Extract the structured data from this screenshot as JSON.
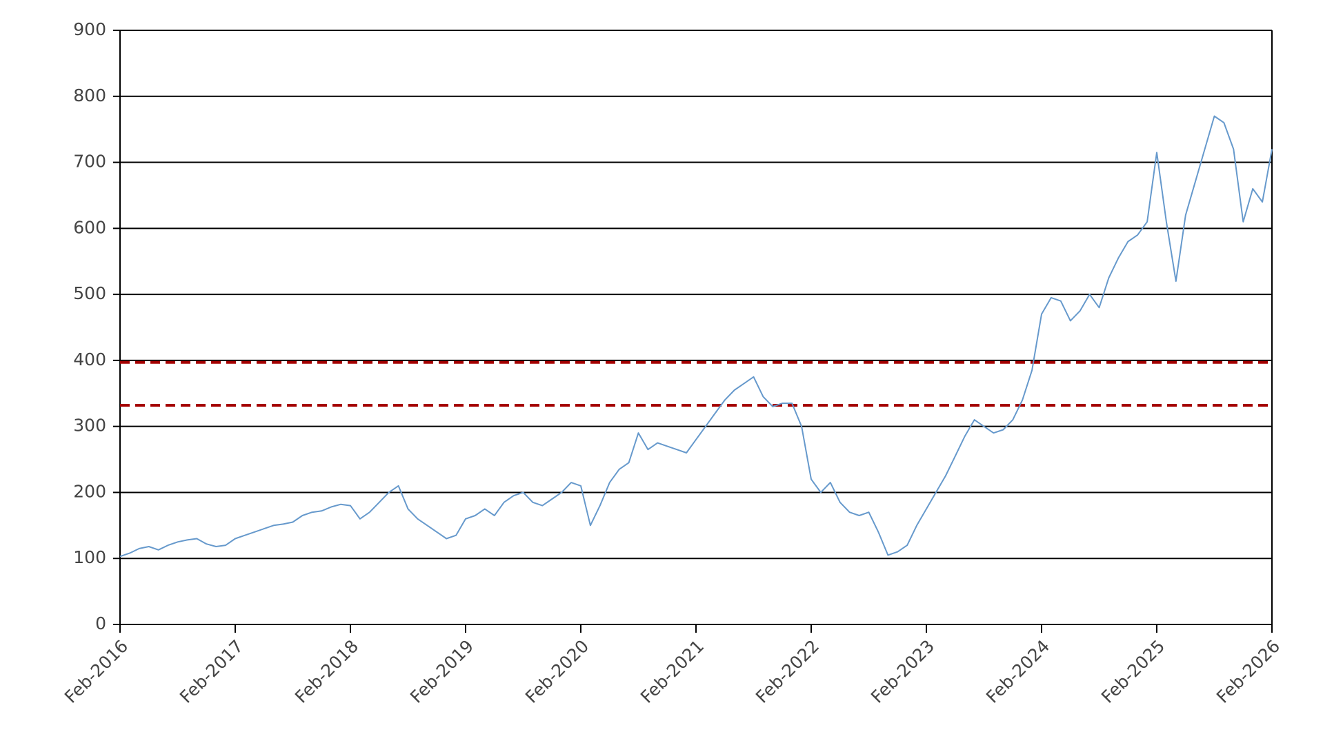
{
  "chart_data": {
    "type": "line",
    "x": [
      "2016-02",
      "2016-03",
      "2016-04",
      "2016-05",
      "2016-06",
      "2016-07",
      "2016-08",
      "2016-09",
      "2016-10",
      "2016-11",
      "2016-12",
      "2017-01",
      "2017-02",
      "2017-03",
      "2017-04",
      "2017-05",
      "2017-06",
      "2017-07",
      "2017-08",
      "2017-09",
      "2017-10",
      "2017-11",
      "2017-12",
      "2018-01",
      "2018-02",
      "2018-03",
      "2018-04",
      "2018-05",
      "2018-06",
      "2018-07",
      "2018-08",
      "2018-09",
      "2018-10",
      "2018-11",
      "2018-12",
      "2019-01",
      "2019-02",
      "2019-03",
      "2019-04",
      "2019-05",
      "2019-06",
      "2019-07",
      "2019-08",
      "2019-09",
      "2019-10",
      "2019-11",
      "2019-12",
      "2020-01",
      "2020-02",
      "2020-03",
      "2020-04",
      "2020-05",
      "2020-06",
      "2020-07",
      "2020-08",
      "2020-09",
      "2020-10",
      "2020-11",
      "2020-12",
      "2021-01",
      "2021-02",
      "2021-03",
      "2021-04",
      "2021-05",
      "2021-06",
      "2021-07",
      "2021-08",
      "2021-09",
      "2021-10",
      "2021-11",
      "2021-12",
      "2022-01",
      "2022-02",
      "2022-03",
      "2022-04",
      "2022-05",
      "2022-06",
      "2022-07",
      "2022-08",
      "2022-09",
      "2022-10",
      "2022-11",
      "2022-12",
      "2023-01",
      "2023-02",
      "2023-03",
      "2023-04",
      "2023-05",
      "2023-06",
      "2023-07",
      "2023-08",
      "2023-09",
      "2023-10",
      "2023-11",
      "2023-12",
      "2024-01",
      "2024-02",
      "2024-03",
      "2024-04",
      "2024-05",
      "2024-06",
      "2024-07",
      "2024-08",
      "2024-09",
      "2024-10",
      "2024-11",
      "2024-12",
      "2025-01",
      "2025-02",
      "2025-03",
      "2025-04",
      "2025-05",
      "2025-06",
      "2025-07",
      "2025-08",
      "2025-09",
      "2025-10",
      "2025-11",
      "2025-12",
      "2026-01",
      "2026-02"
    ],
    "series": [
      {
        "color": "#6699cc",
        "values": [
          103,
          108,
          115,
          118,
          113,
          120,
          125,
          128,
          130,
          122,
          118,
          120,
          130,
          135,
          140,
          145,
          150,
          152,
          155,
          165,
          170,
          172,
          178,
          182,
          180,
          160,
          170,
          185,
          200,
          210,
          175,
          160,
          150,
          140,
          130,
          135,
          160,
          165,
          175,
          165,
          185,
          195,
          200,
          185,
          180,
          190,
          200,
          215,
          210,
          150,
          180,
          215,
          235,
          245,
          290,
          265,
          275,
          270,
          265,
          260,
          280,
          300,
          320,
          340,
          355,
          365,
          375,
          345,
          330,
          335,
          335,
          300,
          220,
          200,
          215,
          185,
          170,
          165,
          170,
          140,
          105,
          110,
          120,
          150,
          175,
          200,
          225,
          255,
          285,
          310,
          300,
          290,
          295,
          310,
          340,
          385,
          470,
          495,
          490,
          460,
          475,
          500,
          480,
          525,
          555,
          580,
          590,
          610,
          715,
          610,
          520,
          620,
          670,
          720,
          770,
          760,
          720,
          610,
          660,
          640,
          720
        ]
      }
    ],
    "reference_lines": [
      {
        "value": 397,
        "color": "#a50000"
      },
      {
        "value": 332,
        "color": "#a50000"
      }
    ],
    "xlim": [
      "2016-02",
      "2026-02"
    ],
    "xticks": [
      {
        "value": "2016-02",
        "label": "Feb-2016"
      },
      {
        "value": "2017-02",
        "label": "Feb-2017"
      },
      {
        "value": "2018-02",
        "label": "Feb-2018"
      },
      {
        "value": "2019-02",
        "label": "Feb-2019"
      },
      {
        "value": "2020-02",
        "label": "Feb-2020"
      },
      {
        "value": "2021-02",
        "label": "Feb-2021"
      },
      {
        "value": "2022-02",
        "label": "Feb-2022"
      },
      {
        "value": "2023-02",
        "label": "Feb-2023"
      },
      {
        "value": "2024-02",
        "label": "Feb-2024"
      },
      {
        "value": "2025-02",
        "label": "Feb-2025"
      },
      {
        "value": "2026-02",
        "label": "Feb-2026"
      }
    ],
    "ylim": [
      0,
      900
    ],
    "yticks": [
      0,
      100,
      200,
      300,
      400,
      500,
      600,
      700,
      800,
      900
    ],
    "grid": true
  }
}
